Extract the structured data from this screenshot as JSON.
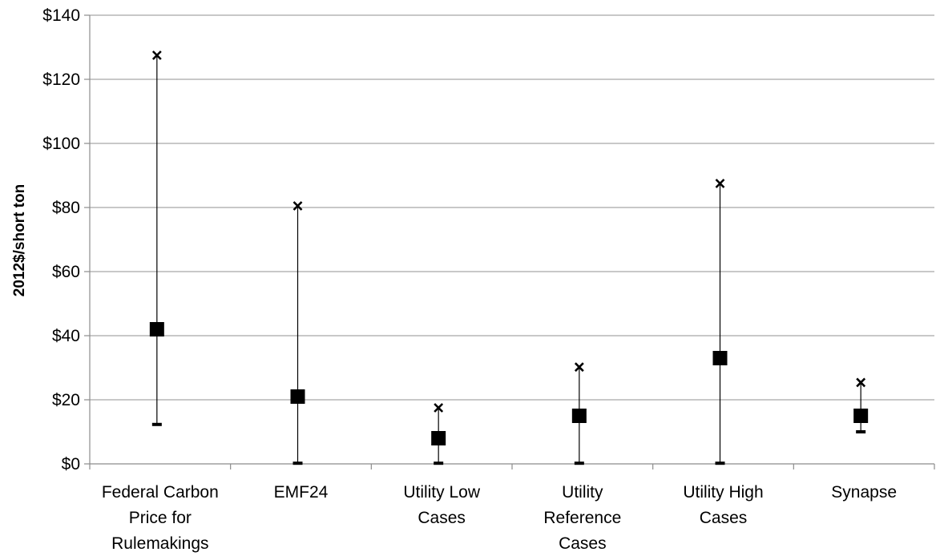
{
  "chart_data": {
    "type": "scatter",
    "title": "",
    "xlabel": "",
    "ylabel": "2012$/short ton",
    "ylim": [
      0,
      140
    ],
    "yticks": [
      0,
      20,
      40,
      60,
      80,
      100,
      120,
      140
    ],
    "ytick_labels": [
      "$0",
      "$20",
      "$40",
      "$60",
      "$80",
      "$100",
      "$120",
      "$140"
    ],
    "grid": true,
    "legend": "none",
    "categories": [
      [
        "Federal Carbon",
        "Price for",
        "Rulemakings"
      ],
      [
        "EMF24"
      ],
      [
        "Utility Low",
        "Cases"
      ],
      [
        "Utility",
        "Reference",
        "Cases"
      ],
      [
        "Utility High",
        "Cases"
      ],
      [
        "Synapse"
      ]
    ],
    "series": [
      {
        "marker": "x-mark",
        "values": [
          127.5,
          80.5,
          17.5,
          30.2,
          87.5,
          25.4
        ]
      },
      {
        "marker": "square",
        "values": [
          42,
          21,
          8,
          15,
          33,
          15
        ]
      },
      {
        "marker": "dash",
        "values": [
          12.3,
          0.2,
          0.2,
          0.2,
          0.2,
          10
        ]
      }
    ]
  }
}
